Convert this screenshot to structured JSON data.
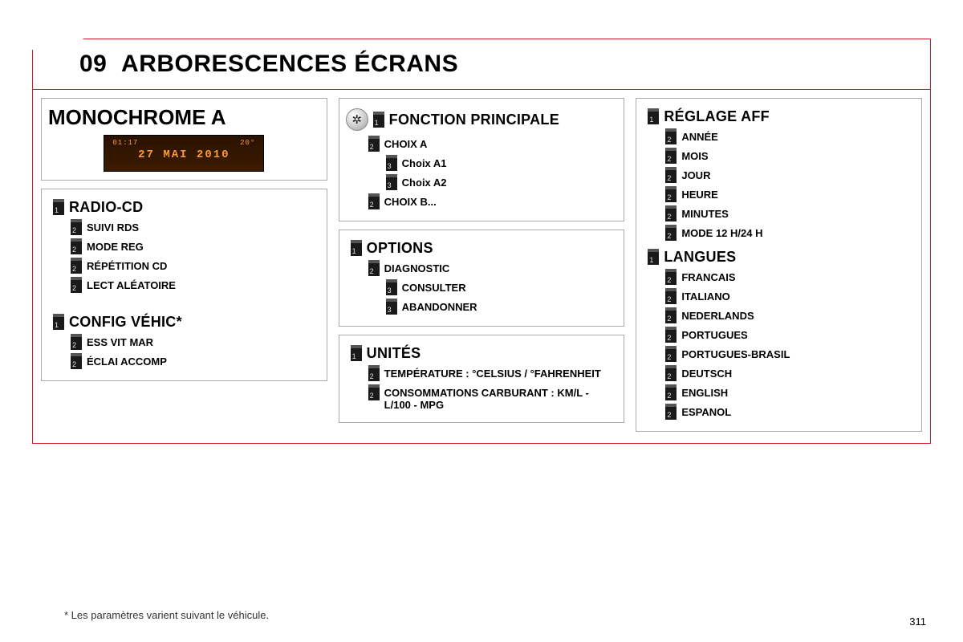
{
  "header": {
    "num": "09",
    "title": "ARBORESCENCES ÉCRANS"
  },
  "mono": {
    "title": "MONOCHROME A",
    "lcd": {
      "time": "01:17",
      "temp": "20°",
      "date": "27 MAI 2010",
      "sub": ""
    }
  },
  "col1": {
    "radio": {
      "head": "RADIO-CD",
      "items": [
        "SUIVI RDS",
        "MODE REG",
        "RÉPÉTITION CD",
        "LECT ALÉATOIRE"
      ]
    },
    "config": {
      "head": "CONFIG VÉHIC*",
      "items": [
        "ESS VIT MAR",
        "ÉCLAI ACCOMP"
      ]
    }
  },
  "col2": {
    "fonction": {
      "head": "FONCTION PRINCIPALE",
      "tree": [
        {
          "lvl": 2,
          "label": "CHOIX A"
        },
        {
          "lvl": 3,
          "label": "Choix A1"
        },
        {
          "lvl": 3,
          "label": "Choix A2"
        },
        {
          "lvl": 2,
          "label": "CHOIX B..."
        }
      ]
    },
    "options": {
      "head": "OPTIONS",
      "tree": [
        {
          "lvl": 2,
          "label": "DIAGNOSTIC"
        },
        {
          "lvl": 3,
          "label": "CONSULTER"
        },
        {
          "lvl": 3,
          "label": "ABANDONNER"
        }
      ]
    },
    "unites": {
      "head": "UNITÉS",
      "tree": [
        {
          "lvl": 2,
          "label": "TEMPÉRATURE : °CELSIUS / °FAHRENHEIT"
        },
        {
          "lvl": 2,
          "label": "CONSOMMATIONS CARBURANT : KM/L - L/100 - MPG"
        }
      ]
    }
  },
  "col3": {
    "reglage": {
      "head": "RÉGLAGE AFF",
      "items": [
        "ANNÉE",
        "MOIS",
        "JOUR",
        "HEURE",
        "MINUTES",
        "MODE 12 H/24 H"
      ]
    },
    "langues": {
      "head": "LANGUES",
      "items": [
        "FRANCAIS",
        "ITALIANO",
        "NEDERLANDS",
        "PORTUGUES",
        "PORTUGUES-BRASIL",
        "DEUTSCH",
        "ENGLISH",
        "ESPANOL"
      ]
    }
  },
  "footnote": "* Les paramètres varient suivant le véhicule.",
  "pagenum": "311",
  "colors": {
    "border": "#d42020",
    "boxborder": "#aaaaaa",
    "badge_bg": "#1a1a1a",
    "lcd_bg": "#3b1b00",
    "lcd_text": "#ff9a2e"
  }
}
